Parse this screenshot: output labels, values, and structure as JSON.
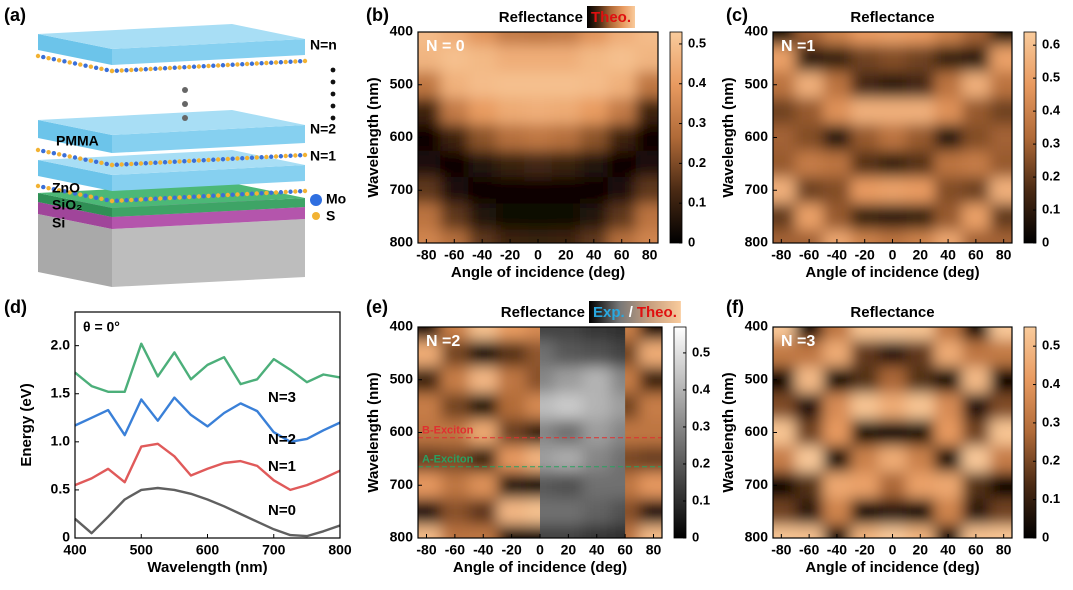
{
  "panel_labels": [
    "(a)",
    "(b)",
    "(c)",
    "(d)",
    "(e)",
    "(f)"
  ],
  "schematic": {
    "stack_labels": [
      "N=n",
      "N=2",
      "N=1"
    ],
    "material_labels": [
      "PMMA",
      "ZnO",
      "SiO₂",
      "Si"
    ],
    "atom_labels": [
      "Mo",
      "S"
    ]
  },
  "chart_data": [
    {
      "type": "heatmap",
      "title": "Reflectance",
      "title_tags": [
        {
          "text": "Theo.",
          "color": "#e01010"
        }
      ],
      "annotation": "N = 0",
      "xlabel": "Angle of incidence (deg)",
      "ylabel": "Wavelength (nm)",
      "x": [
        -80,
        -60,
        -40,
        -20,
        0,
        20,
        40,
        60,
        80
      ],
      "y": [
        400,
        450,
        500,
        550,
        600,
        650,
        700,
        750,
        800
      ],
      "z": [
        [
          0.49,
          0.45,
          0.38,
          0.31,
          0.3,
          0.31,
          0.38,
          0.45,
          0.49
        ],
        [
          0.47,
          0.5,
          0.48,
          0.45,
          0.45,
          0.45,
          0.48,
          0.5,
          0.47
        ],
        [
          0.3,
          0.46,
          0.49,
          0.5,
          0.5,
          0.5,
          0.49,
          0.46,
          0.3
        ],
        [
          0.11,
          0.31,
          0.4,
          0.44,
          0.45,
          0.44,
          0.4,
          0.31,
          0.11
        ],
        [
          0.02,
          0.11,
          0.22,
          0.28,
          0.3,
          0.28,
          0.22,
          0.11,
          0.02
        ],
        [
          0.05,
          0.02,
          0.06,
          0.1,
          0.12,
          0.1,
          0.06,
          0.02,
          0.05
        ],
        [
          0.16,
          0.05,
          0.02,
          0.02,
          0.02,
          0.02,
          0.02,
          0.05,
          0.16
        ],
        [
          0.29,
          0.16,
          0.06,
          0.03,
          0.03,
          0.03,
          0.06,
          0.16,
          0.29
        ],
        [
          0.34,
          0.28,
          0.16,
          0.11,
          0.1,
          0.11,
          0.16,
          0.28,
          0.34
        ]
      ],
      "xlim": [
        -86,
        86
      ],
      "ylim": [
        400,
        800
      ],
      "y_inverted": true,
      "xticks": [
        -80,
        -60,
        -40,
        -20,
        0,
        20,
        40,
        60,
        80
      ],
      "yticks": [
        400,
        500,
        600,
        700,
        800
      ],
      "zlim": [
        0,
        0.53
      ],
      "colorbar_ticks": [
        0,
        0.1,
        0.2,
        0.3,
        0.4,
        0.5
      ],
      "colormap": [
        "#000000",
        "#4a2a14",
        "#b06a38",
        "#e89a60",
        "#f9cb9c"
      ]
    },
    {
      "type": "heatmap",
      "title": "Reflectance",
      "annotation": "N =1",
      "xlabel": "Angle of incidence (deg)",
      "ylabel": "Wavelength (nm)",
      "x": [
        -80,
        -60,
        -40,
        -20,
        0,
        20,
        40,
        60,
        80
      ],
      "y": [
        400,
        450,
        500,
        550,
        600,
        650,
        700,
        750,
        800
      ],
      "z": [
        [
          0.05,
          0.3,
          0.4,
          0.48,
          0.5,
          0.48,
          0.4,
          0.3,
          0.05
        ],
        [
          0.5,
          0.1,
          0.12,
          0.22,
          0.25,
          0.22,
          0.12,
          0.1,
          0.5
        ],
        [
          0.35,
          0.55,
          0.35,
          0.15,
          0.1,
          0.15,
          0.35,
          0.55,
          0.35
        ],
        [
          0.22,
          0.28,
          0.45,
          0.55,
          0.55,
          0.55,
          0.45,
          0.28,
          0.22
        ],
        [
          0.3,
          0.25,
          0.07,
          0.28,
          0.35,
          0.28,
          0.07,
          0.25,
          0.3
        ],
        [
          0.28,
          0.38,
          0.35,
          0.18,
          0.12,
          0.18,
          0.35,
          0.38,
          0.28
        ],
        [
          0.55,
          0.22,
          0.25,
          0.48,
          0.5,
          0.48,
          0.25,
          0.22,
          0.55
        ],
        [
          0.2,
          0.5,
          0.28,
          0.12,
          0.1,
          0.12,
          0.28,
          0.5,
          0.2
        ],
        [
          0.3,
          0.3,
          0.52,
          0.4,
          0.35,
          0.4,
          0.52,
          0.3,
          0.3
        ]
      ],
      "xlim": [
        -86,
        86
      ],
      "ylim": [
        400,
        800
      ],
      "y_inverted": true,
      "xticks": [
        -80,
        -60,
        -40,
        -20,
        0,
        20,
        40,
        60,
        80
      ],
      "yticks": [
        400,
        500,
        600,
        700,
        800
      ],
      "zlim": [
        0,
        0.64
      ],
      "colorbar_ticks": [
        0,
        0.1,
        0.2,
        0.3,
        0.4,
        0.5,
        0.6
      ],
      "colormap": [
        "#000000",
        "#4a2a14",
        "#b06a38",
        "#e89a60",
        "#f9cb9c"
      ]
    },
    {
      "type": "line",
      "annotation": "θ = 0°",
      "xlabel": "Wavelength (nm)",
      "ylabel": "Energy (eV)",
      "x": [
        400,
        425,
        450,
        475,
        500,
        525,
        550,
        575,
        600,
        625,
        650,
        675,
        700,
        725,
        750,
        775,
        800
      ],
      "series": [
        {
          "name": "N=0",
          "color": "#606060",
          "values": [
            0.2,
            0.05,
            0.22,
            0.4,
            0.5,
            0.52,
            0.5,
            0.46,
            0.4,
            0.33,
            0.25,
            0.17,
            0.09,
            0.03,
            0.02,
            0.07,
            0.13
          ]
        },
        {
          "name": "N=1",
          "color": "#e05a5a",
          "values": [
            0.55,
            0.62,
            0.72,
            0.58,
            0.95,
            0.98,
            0.85,
            0.65,
            0.72,
            0.78,
            0.8,
            0.75,
            0.6,
            0.5,
            0.55,
            0.62,
            0.7
          ]
        },
        {
          "name": "N=2",
          "color": "#3a80d8",
          "values": [
            1.17,
            1.25,
            1.33,
            1.07,
            1.44,
            1.22,
            1.46,
            1.28,
            1.16,
            1.3,
            1.4,
            1.32,
            1.1,
            1.0,
            1.03,
            1.12,
            1.2
          ]
        },
        {
          "name": "N=3",
          "color": "#4caf7a",
          "values": [
            1.72,
            1.58,
            1.52,
            1.52,
            2.02,
            1.68,
            1.93,
            1.65,
            1.8,
            1.88,
            1.6,
            1.65,
            1.86,
            1.75,
            1.62,
            1.7,
            1.67
          ]
        }
      ],
      "xlim": [
        400,
        800
      ],
      "ylim": [
        0,
        2.35
      ],
      "xticks": [
        400,
        500,
        600,
        700,
        800
      ],
      "yticks": [
        0,
        0.5,
        {
          "value": 1,
          "label": "1.0"
        },
        1.5,
        {
          "value": 2,
          "label": "2.0"
        }
      ]
    },
    {
      "type": "heatmap",
      "title": "Reflectance",
      "title_tags": [
        {
          "text": "Exp.",
          "color": "#29a8e0"
        },
        {
          "text": "/",
          "color": "#ffffff"
        },
        {
          "text": "Theo.",
          "color": "#e01010"
        }
      ],
      "annotation": "N =2",
      "xlabel": "Angle of incidence (deg)",
      "ylabel": "Wavelength (nm)",
      "x": [
        -80,
        -60,
        -40,
        -20,
        0,
        20,
        40,
        60,
        80
      ],
      "y": [
        400,
        450,
        500,
        550,
        600,
        650,
        700,
        750,
        800
      ],
      "z": [
        [
          0.02,
          0.35,
          0.54,
          0.43,
          0.38,
          0.43,
          0.54,
          0.35,
          0.02
        ],
        [
          0.48,
          0.2,
          0.01,
          0.16,
          0.24,
          0.16,
          0.01,
          0.2,
          0.48
        ],
        [
          0.12,
          0.34,
          0.51,
          0.32,
          0.23,
          0.32,
          0.51,
          0.34,
          0.12
        ],
        [
          0.34,
          0.2,
          0.04,
          0.29,
          0.38,
          0.29,
          0.04,
          0.2,
          0.34
        ],
        [
          0.32,
          0.32,
          0.47,
          0.19,
          0.1,
          0.19,
          0.47,
          0.32,
          0.32
        ],
        [
          0.19,
          0.21,
          0.11,
          0.42,
          0.5,
          0.42,
          0.11,
          0.21,
          0.19
        ],
        [
          0.42,
          0.32,
          0.4,
          0.07,
          0.01,
          0.07,
          0.4,
          0.32,
          0.42
        ],
        [
          0.05,
          0.23,
          0.17,
          0.51,
          0.54,
          0.51,
          0.17,
          0.23,
          0.05
        ],
        [
          0.52,
          0.31,
          0.32,
          0.01,
          0.01,
          0.01,
          0.32,
          0.31,
          0.52
        ]
      ],
      "overlay": {
        "x": [
          0,
          20,
          40,
          60
        ],
        "xlim": [
          0,
          60
        ],
        "colormap": [
          "#000000",
          "#ffffff"
        ],
        "z": [
          [
            0.15,
            0.15,
            0.12,
            0.1
          ],
          [
            0.25,
            0.2,
            0.18,
            0.15
          ],
          [
            0.3,
            0.35,
            0.4,
            0.3
          ],
          [
            0.42,
            0.45,
            0.4,
            0.35
          ],
          [
            0.3,
            0.25,
            0.35,
            0.3
          ],
          [
            0.35,
            0.38,
            0.3,
            0.25
          ],
          [
            0.2,
            0.18,
            0.25,
            0.25
          ],
          [
            0.25,
            0.25,
            0.22,
            0.18
          ],
          [
            0.15,
            0.15,
            0.12,
            0.1
          ]
        ]
      },
      "lines": [
        {
          "label": "B-Exciton",
          "y": 610,
          "color": "#e03030"
        },
        {
          "label": "A-Exciton",
          "y": 665,
          "color": "#2aa060"
        }
      ],
      "xlim": [
        -86,
        86
      ],
      "ylim": [
        400,
        800
      ],
      "y_inverted": true,
      "xticks": [
        -80,
        -60,
        -40,
        -20,
        0,
        20,
        40,
        60,
        80
      ],
      "yticks": [
        400,
        500,
        600,
        700,
        800
      ],
      "zlim": [
        0,
        0.57
      ],
      "colorbar_ticks": [
        0,
        0.1,
        0.2,
        0.3,
        0.4,
        0.5
      ],
      "colormap": [
        "#000000",
        "#4a2a14",
        "#b06a38",
        "#e89a60",
        "#f9cb9c"
      ]
    },
    {
      "type": "heatmap",
      "title": "Reflectance",
      "annotation": "N =3",
      "xlabel": "Angle of incidence (deg)",
      "ylabel": "Wavelength (nm)",
      "x": [
        -80,
        -60,
        -40,
        -20,
        0,
        20,
        40,
        60,
        80
      ],
      "y": [
        400,
        450,
        500,
        550,
        600,
        650,
        700,
        750,
        800
      ],
      "z": [
        [
          0.54,
          0,
          0.31,
          0.53,
          0.54,
          0.53,
          0.31,
          0,
          0.54
        ],
        [
          0.32,
          0.31,
          0.46,
          0.17,
          0.08,
          0.17,
          0.46,
          0.31,
          0.32
        ],
        [
          0,
          0.5,
          0,
          0.15,
          0.27,
          0.15,
          0,
          0.5,
          0
        ],
        [
          0.21,
          0.05,
          0.37,
          0.53,
          0.46,
          0.53,
          0.37,
          0.05,
          0.21
        ],
        [
          0.53,
          0.19,
          0.41,
          0.04,
          0,
          0.04,
          0.41,
          0.19,
          0.53
        ],
        [
          0.33,
          0.54,
          0,
          0.34,
          0.46,
          0.34,
          0,
          0.54,
          0.33
        ],
        [
          0.01,
          0.15,
          0.45,
          0.43,
          0.27,
          0.43,
          0.45,
          0.15,
          0.01
        ],
        [
          0.19,
          0.08,
          0.35,
          0,
          0.08,
          0,
          0.35,
          0.08,
          0.19
        ],
        [
          0.53,
          0.52,
          0.01,
          0.48,
          0.54,
          0.48,
          0.01,
          0.52,
          0.53
        ]
      ],
      "xlim": [
        -86,
        86
      ],
      "ylim": [
        400,
        800
      ],
      "y_inverted": true,
      "xticks": [
        -80,
        -60,
        -40,
        -20,
        0,
        20,
        40,
        60,
        80
      ],
      "yticks": [
        400,
        500,
        600,
        700,
        800
      ],
      "zlim": [
        0,
        0.55
      ],
      "colorbar_ticks": [
        0,
        0.1,
        0.2,
        0.3,
        0.4,
        0.5
      ],
      "colormap": [
        "#000000",
        "#4a2a14",
        "#b06a38",
        "#e89a60",
        "#f9cb9c"
      ]
    }
  ]
}
